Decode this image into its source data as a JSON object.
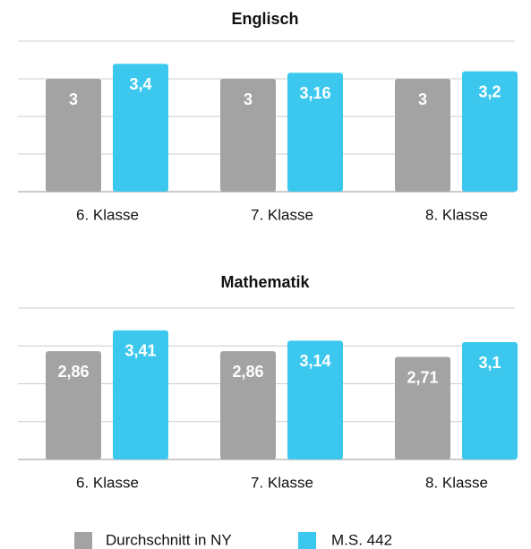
{
  "chart_data": [
    {
      "type": "bar",
      "title": "Englisch",
      "categories": [
        "6. Klasse",
        "7. Klasse",
        "8. Klasse"
      ],
      "series": [
        {
          "name": "Durchschnitt in NY",
          "color": "#a3a3a3",
          "values": [
            3,
            3,
            3
          ],
          "value_labels": [
            "3",
            "3",
            "3"
          ]
        },
        {
          "name": "M.S. 442",
          "color": "#3cc8ee",
          "values": [
            3.4,
            3.16,
            3.2
          ],
          "value_labels": [
            "3,4",
            "3,16",
            "3,2"
          ]
        }
      ],
      "ylim": [
        0,
        4
      ],
      "yticks": [
        0,
        1,
        2,
        3,
        4
      ],
      "grid": true
    },
    {
      "type": "bar",
      "title": "Mathematik",
      "categories": [
        "6. Klasse",
        "7. Klasse",
        "8. Klasse"
      ],
      "series": [
        {
          "color": "#a3a3a3",
          "values": [
            2.86,
            2.86,
            2.71
          ],
          "value_labels": [
            "2,86",
            "2,86",
            "2,71"
          ]
        },
        {
          "color": "#3cc8ee",
          "values": [
            3.41,
            3.14,
            3.1
          ],
          "value_labels": [
            "3,41",
            "3,14",
            "3,1"
          ]
        }
      ],
      "ylim": [
        0,
        4
      ],
      "yticks": [
        0,
        1,
        2,
        3,
        4
      ],
      "grid": true
    }
  ]
}
